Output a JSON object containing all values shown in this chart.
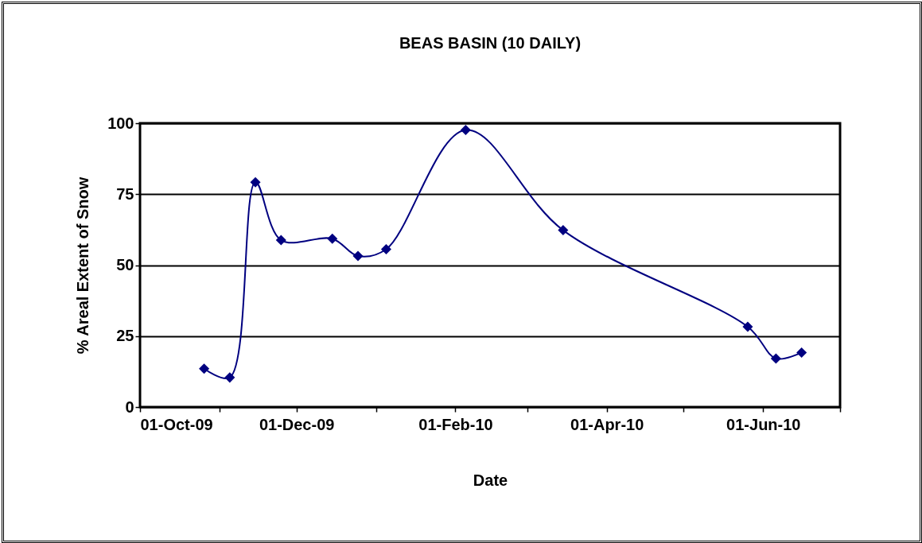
{
  "chart_data": {
    "type": "line",
    "title": "BEAS BASIN (10 DAILY)",
    "xlabel": "Date",
    "ylabel": "% Areal Extent of Snow",
    "x": [
      "2009-10-26",
      "2009-11-05",
      "2009-11-15",
      "2009-11-25",
      "2009-12-15",
      "2009-12-25",
      "2010-01-05",
      "2010-02-05",
      "2010-03-15",
      "2010-05-26",
      "2010-06-06",
      "2010-06-16"
    ],
    "series": [
      {
        "color": "#000080",
        "values": [
          13.5,
          10.4,
          79.2,
          58.8,
          59.3,
          53.2,
          55.6,
          97.6,
          62.3,
          28.3,
          17.1,
          19.2
        ]
      }
    ],
    "xlim": [
      "2009-10-01",
      "2010-07-01"
    ],
    "xticks": [
      {
        "value": "2009-10-01",
        "label": "01-Oct-09"
      },
      {
        "value": "2009-11-01",
        "label": null
      },
      {
        "value": "2009-12-01",
        "label": "01-Dec-09"
      },
      {
        "value": "2010-01-01",
        "label": null
      },
      {
        "value": "2010-02-01",
        "label": "01-Feb-10"
      },
      {
        "value": "2010-03-01",
        "label": null
      },
      {
        "value": "2010-04-01",
        "label": "01-Apr-10"
      },
      {
        "value": "2010-05-01",
        "label": null
      },
      {
        "value": "2010-06-01",
        "label": "01-Jun-10"
      },
      {
        "value": "2010-07-01",
        "label": null
      }
    ],
    "ylim": [
      0,
      100
    ],
    "yticks": [
      0,
      25,
      50,
      75,
      100
    ],
    "grid": "y",
    "legend": false,
    "marker": "diamond",
    "line_style": "solid"
  }
}
